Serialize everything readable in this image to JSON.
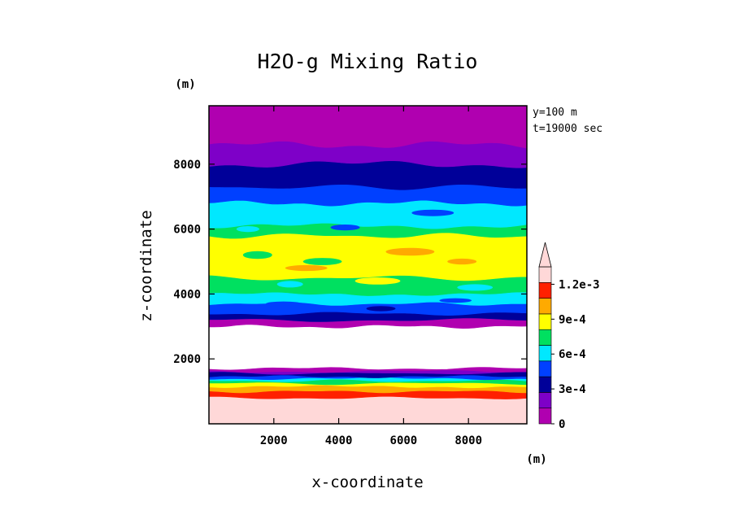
{
  "chart_data": {
    "type": "heatmap",
    "title": "H2O-g Mixing Ratio",
    "xlabel": "x-coordinate",
    "ylabel": "z-coordinate",
    "x_unit": "(m)",
    "y_unit": "(m)",
    "xlim": [
      0,
      9800
    ],
    "ylim": [
      0,
      9800
    ],
    "x_ticks": [
      "2000",
      "4000",
      "6000",
      "8000"
    ],
    "y_ticks": [
      "2000",
      "4000",
      "6000",
      "8000"
    ],
    "info_lines": [
      "y=100 m",
      "t=19000 sec"
    ],
    "colorbar": {
      "levels": [
        0,
        0.00015,
        0.0003,
        0.00045,
        0.0006,
        0.00075,
        0.0009,
        0.00105,
        0.0012,
        0.00135
      ],
      "colors": [
        "#b000b0",
        "#7e00c8",
        "#000099",
        "#0040ff",
        "#00e8ff",
        "#00e060",
        "#ffff00",
        "#ffaa00",
        "#ff2000",
        "#ffd8d8"
      ],
      "tick_labels": [
        "0",
        "3e-4",
        "6e-4",
        "9e-4",
        "1.2e-3"
      ],
      "tick_values": [
        0,
        0.0003,
        0.0006,
        0.0009,
        0.0012
      ],
      "extend": "max"
    },
    "bands": [
      {
        "level_index": 9,
        "z_range": [
          0,
          800
        ]
      },
      {
        "level_index": 8,
        "z_range": [
          800,
          1000
        ]
      },
      {
        "level_index": 7,
        "z_range": [
          1000,
          1150
        ]
      },
      {
        "level_index": 6,
        "z_range": [
          1150,
          1250
        ]
      },
      {
        "level_index": 5,
        "z_range": [
          1250,
          1330
        ]
      },
      {
        "level_index": 4,
        "z_range": [
          1330,
          1400
        ]
      },
      {
        "level_index": 3,
        "z_range": [
          1400,
          1460
        ]
      },
      {
        "level_index": 2,
        "z_range": [
          1460,
          1560
        ]
      },
      {
        "level_index": 1,
        "z_range": [
          1560,
          1620
        ]
      },
      {
        "level_index": 0,
        "z_range": [
          1620,
          1700
        ]
      },
      {
        "level_index": null,
        "z_range": [
          1700,
          3000
        ],
        "note": "no data"
      },
      {
        "level_index": 0,
        "z_range": [
          3000,
          3200
        ]
      },
      {
        "level_index": 2,
        "z_range": [
          3200,
          3400
        ]
      },
      {
        "level_index": 3,
        "z_range": [
          3400,
          3700
        ]
      },
      {
        "level_index": 4,
        "z_range": [
          3700,
          4000
        ]
      },
      {
        "level_index": 5,
        "z_range": [
          4000,
          4500
        ]
      },
      {
        "level_index": 6,
        "z_range": [
          4500,
          5800
        ]
      },
      {
        "level_index": 5,
        "z_range": [
          5800,
          6100
        ]
      },
      {
        "level_index": 4,
        "z_range": [
          6100,
          6800
        ]
      },
      {
        "level_index": 3,
        "z_range": [
          6800,
          7300
        ]
      },
      {
        "level_index": 2,
        "z_range": [
          7300,
          8000
        ]
      },
      {
        "level_index": 1,
        "z_range": [
          8000,
          8600
        ]
      },
      {
        "level_index": 0,
        "z_range": [
          8600,
          9800
        ]
      }
    ]
  }
}
